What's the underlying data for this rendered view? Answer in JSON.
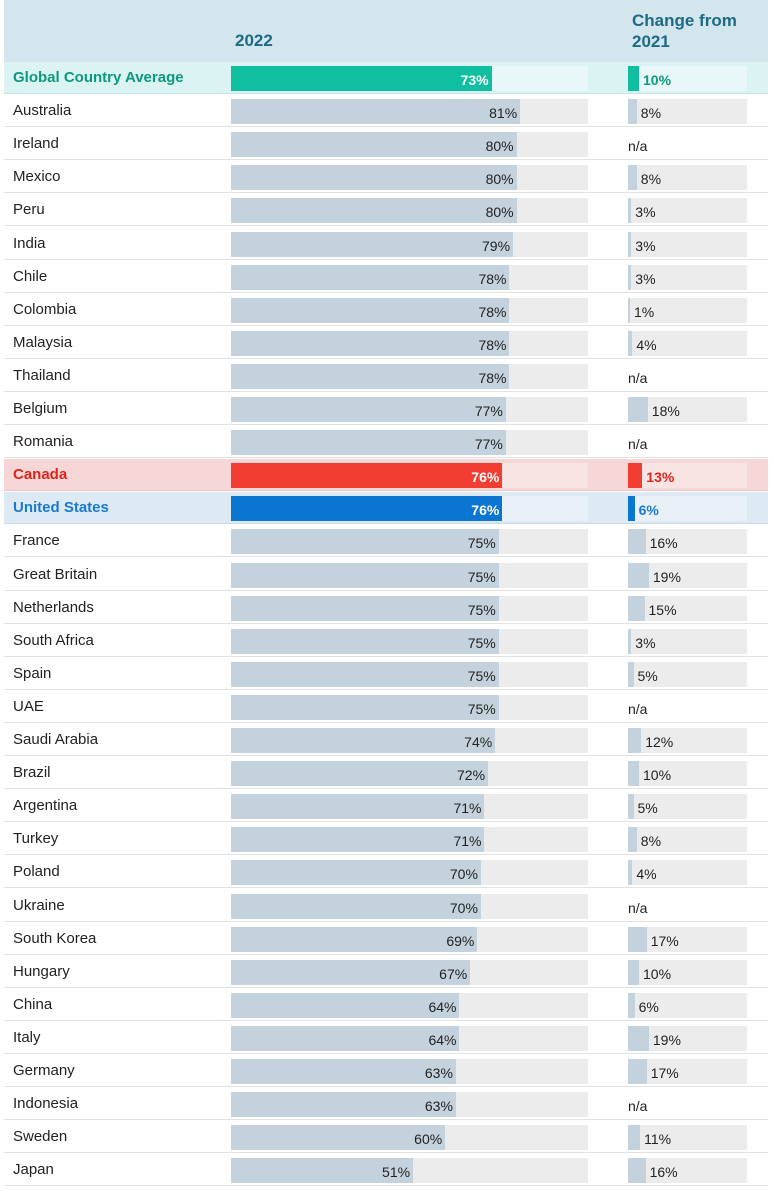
{
  "header": {
    "col_2022": "2022",
    "col_change": "Change from 2021"
  },
  "colors": {
    "default_bar": "#c3d2dc",
    "track": "#ececec",
    "green": "#0fbf9f",
    "red": "#f23d32",
    "blue": "#0a76d1",
    "green_text": "#0a9a7e",
    "red_text": "#e0231b",
    "blue_text": "#1a7ad0"
  },
  "chart_data": {
    "type": "bar",
    "title": "",
    "xlabel": "2022",
    "ylabel": "",
    "xlim": [
      0,
      100
    ],
    "change_xlim": [
      0,
      20
    ],
    "categories": [
      "Global Country Average",
      "Australia",
      "Ireland",
      "Mexico",
      "Peru",
      "India",
      "Chile",
      "Colombia",
      "Malaysia",
      "Thailand",
      "Belgium",
      "Romania",
      "Canada",
      "United States",
      "France",
      "Great Britain",
      "Netherlands",
      "South Africa",
      "Spain",
      "UAE",
      "Saudi Arabia",
      "Brazil",
      "Argentina",
      "Turkey",
      "Poland",
      "Ukraine",
      "South Korea",
      "Hungary",
      "China",
      "Italy",
      "Germany",
      "Indonesia",
      "Sweden",
      "Japan"
    ],
    "rows": [
      {
        "country": "Global Country Average",
        "value": 73,
        "value_label": "73%",
        "change": 10,
        "change_label": "10%",
        "highlight": "green"
      },
      {
        "country": "Australia",
        "value": 81,
        "value_label": "81%",
        "change": 8,
        "change_label": "8%"
      },
      {
        "country": "Ireland",
        "value": 80,
        "value_label": "80%",
        "change": null,
        "change_label": "n/a"
      },
      {
        "country": "Mexico",
        "value": 80,
        "value_label": "80%",
        "change": 8,
        "change_label": "8%"
      },
      {
        "country": "Peru",
        "value": 80,
        "value_label": "80%",
        "change": 3,
        "change_label": "3%"
      },
      {
        "country": "India",
        "value": 79,
        "value_label": "79%",
        "change": 3,
        "change_label": "3%"
      },
      {
        "country": "Chile",
        "value": 78,
        "value_label": "78%",
        "change": 3,
        "change_label": "3%"
      },
      {
        "country": "Colombia",
        "value": 78,
        "value_label": "78%",
        "change": 1,
        "change_label": "1%"
      },
      {
        "country": "Malaysia",
        "value": 78,
        "value_label": "78%",
        "change": 4,
        "change_label": "4%"
      },
      {
        "country": "Thailand",
        "value": 78,
        "value_label": "78%",
        "change": null,
        "change_label": "n/a"
      },
      {
        "country": "Belgium",
        "value": 77,
        "value_label": "77%",
        "change": 18,
        "change_label": "18%"
      },
      {
        "country": "Romania",
        "value": 77,
        "value_label": "77%",
        "change": null,
        "change_label": "n/a"
      },
      {
        "country": "Canada",
        "value": 76,
        "value_label": "76%",
        "change": 13,
        "change_label": "13%",
        "highlight": "red"
      },
      {
        "country": "United States",
        "value": 76,
        "value_label": "76%",
        "change": 6,
        "change_label": "6%",
        "highlight": "blue"
      },
      {
        "country": "France",
        "value": 75,
        "value_label": "75%",
        "change": 16,
        "change_label": "16%"
      },
      {
        "country": "Great Britain",
        "value": 75,
        "value_label": "75%",
        "change": 19,
        "change_label": "19%"
      },
      {
        "country": "Netherlands",
        "value": 75,
        "value_label": "75%",
        "change": 15,
        "change_label": "15%"
      },
      {
        "country": "South Africa",
        "value": 75,
        "value_label": "75%",
        "change": 3,
        "change_label": "3%"
      },
      {
        "country": "Spain",
        "value": 75,
        "value_label": "75%",
        "change": 5,
        "change_label": "5%"
      },
      {
        "country": "UAE",
        "value": 75,
        "value_label": "75%",
        "change": null,
        "change_label": "n/a"
      },
      {
        "country": "Saudi Arabia",
        "value": 74,
        "value_label": "74%",
        "change": 12,
        "change_label": "12%"
      },
      {
        "country": "Brazil",
        "value": 72,
        "value_label": "72%",
        "change": 10,
        "change_label": "10%"
      },
      {
        "country": "Argentina",
        "value": 71,
        "value_label": "71%",
        "change": 5,
        "change_label": "5%"
      },
      {
        "country": "Turkey",
        "value": 71,
        "value_label": "71%",
        "change": 8,
        "change_label": "8%"
      },
      {
        "country": "Poland",
        "value": 70,
        "value_label": "70%",
        "change": 4,
        "change_label": "4%"
      },
      {
        "country": "Ukraine",
        "value": 70,
        "value_label": "70%",
        "change": null,
        "change_label": "n/a"
      },
      {
        "country": "South Korea",
        "value": 69,
        "value_label": "69%",
        "change": 17,
        "change_label": "17%"
      },
      {
        "country": "Hungary",
        "value": 67,
        "value_label": "67%",
        "change": 10,
        "change_label": "10%"
      },
      {
        "country": "China",
        "value": 64,
        "value_label": "64%",
        "change": 6,
        "change_label": "6%"
      },
      {
        "country": "Italy",
        "value": 64,
        "value_label": "64%",
        "change": 19,
        "change_label": "19%"
      },
      {
        "country": "Germany",
        "value": 63,
        "value_label": "63%",
        "change": 17,
        "change_label": "17%"
      },
      {
        "country": "Indonesia",
        "value": 63,
        "value_label": "63%",
        "change": null,
        "change_label": "n/a"
      },
      {
        "country": "Sweden",
        "value": 60,
        "value_label": "60%",
        "change": 11,
        "change_label": "11%"
      },
      {
        "country": "Japan",
        "value": 51,
        "value_label": "51%",
        "change": 16,
        "change_label": "16%"
      }
    ]
  }
}
